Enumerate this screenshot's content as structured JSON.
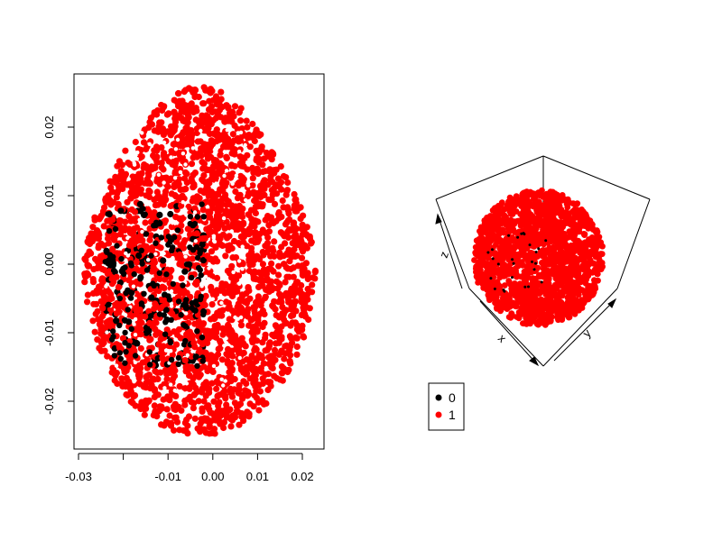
{
  "chart_data": [
    {
      "type": "scatter",
      "title": "",
      "xlabel": "",
      "ylabel": "",
      "xlim": [
        -0.03,
        0.02
      ],
      "ylim": [
        -0.025,
        0.025
      ],
      "x_ticks": [
        "-0.03",
        "-0.01",
        "0.00",
        "0.01",
        "0.02"
      ],
      "x_tick_values": [
        -0.03,
        -0.01,
        0.0,
        0.01,
        0.02
      ],
      "x_minor_tick_values": [
        -0.02
      ],
      "y_ticks": [
        "-0.02",
        "-0.01",
        "0.00",
        "0.01",
        "0.02"
      ],
      "y_tick_values": [
        -0.02,
        -0.01,
        0.0,
        0.01,
        0.02
      ],
      "grid": false,
      "point_cloud": {
        "shape": "egg",
        "center": [
          -0.0025,
          -0.001
        ],
        "x_extent": [
          -0.029,
          0.023
        ],
        "y_extent": [
          -0.025,
          0.026
        ],
        "class_0_region": {
          "x": [
            -0.024,
            -0.002
          ],
          "y": [
            -0.015,
            0.009
          ]
        }
      },
      "series": [
        {
          "name": "0",
          "color": "#000000"
        },
        {
          "name": "1",
          "color": "#ff0000"
        }
      ]
    },
    {
      "type": "scatter-3d",
      "title": "",
      "axis_labels": [
        "x",
        "y",
        "z"
      ],
      "series": [
        {
          "name": "0",
          "color": "#000000"
        },
        {
          "name": "1",
          "color": "#ff0000"
        }
      ]
    }
  ],
  "legend": {
    "entries": [
      {
        "label": "0",
        "color": "#000000"
      },
      {
        "label": "1",
        "color": "#ff0000"
      }
    ]
  }
}
